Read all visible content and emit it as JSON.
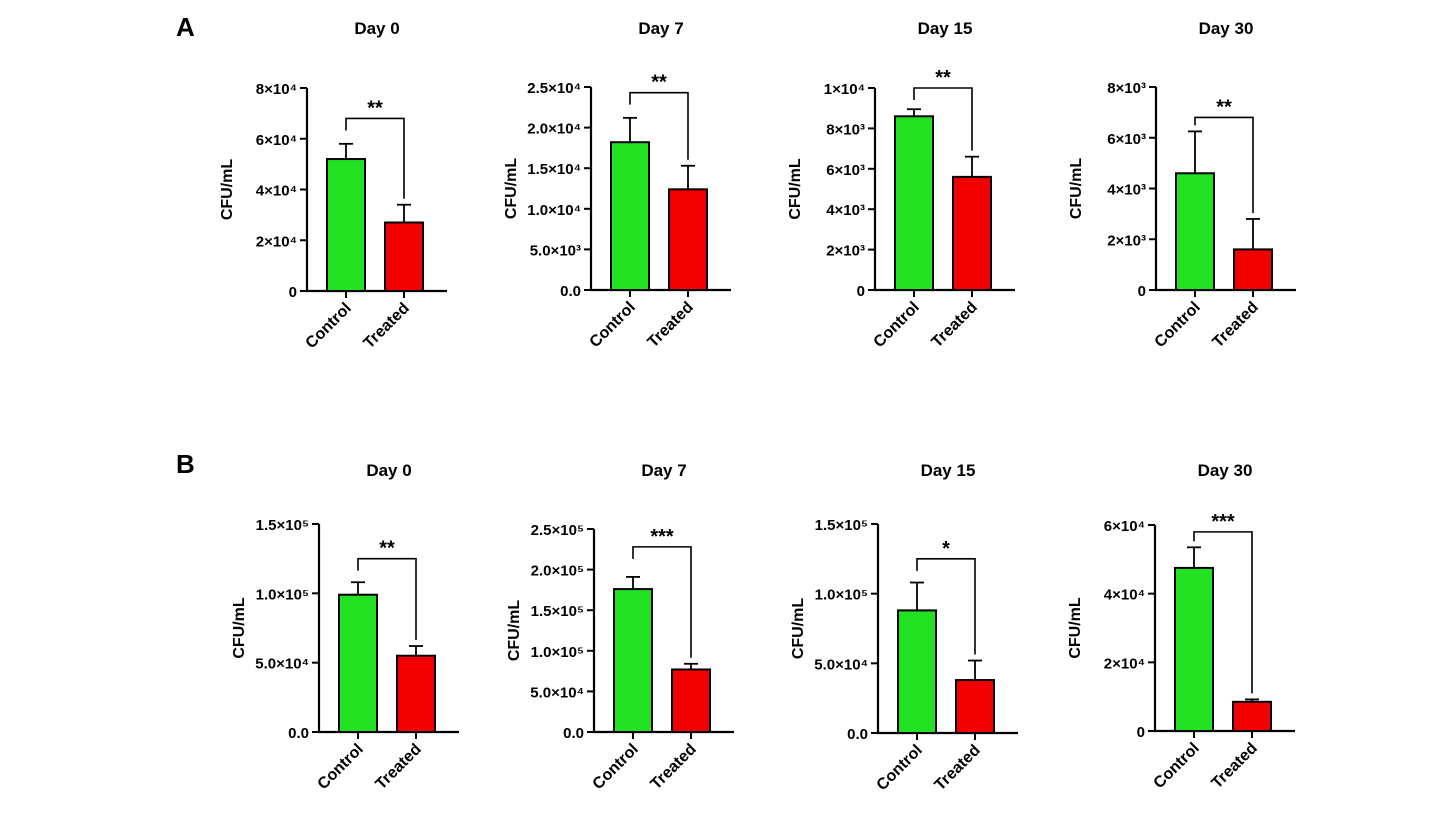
{
  "figure": {
    "panels": [
      {
        "letter": "A"
      },
      {
        "letter": "B"
      }
    ]
  },
  "colors": {
    "control": "#22e022",
    "treated": "#f20000",
    "axis": "#000000"
  },
  "chart_data": [
    {
      "type": "bar",
      "panel": "A",
      "title": "Day 0",
      "categories": [
        "Control",
        "Treated"
      ],
      "ylabel": "CFU/mL",
      "ylim": [
        0,
        80000
      ],
      "ticks": [
        {
          "v": 0,
          "label": "0"
        },
        {
          "v": 20000,
          "label": "2×10⁴"
        },
        {
          "v": 40000,
          "label": "4×10⁴"
        },
        {
          "v": 60000,
          "label": "6×10⁴"
        },
        {
          "v": 80000,
          "label": "8×10⁴"
        }
      ],
      "values": [
        52000,
        27000
      ],
      "errors": [
        6000,
        7000
      ],
      "significance": {
        "label": "**",
        "level": 68000
      }
    },
    {
      "type": "bar",
      "panel": "A",
      "title": "Day 7",
      "categories": [
        "Control",
        "Treated"
      ],
      "ylabel": "CFU/mL",
      "ylim": [
        0,
        25000
      ],
      "ticks": [
        {
          "v": 0,
          "label": "0.0"
        },
        {
          "v": 5000,
          "label": "5.0×10³"
        },
        {
          "v": 10000,
          "label": "1.0×10⁴"
        },
        {
          "v": 15000,
          "label": "1.5×10⁴"
        },
        {
          "v": 20000,
          "label": "2.0×10⁴"
        },
        {
          "v": 25000,
          "label": "2.5×10⁴"
        }
      ],
      "values": [
        18200,
        12400
      ],
      "errors": [
        3000,
        2900
      ],
      "significance": {
        "label": "**",
        "level": 24300
      }
    },
    {
      "type": "bar",
      "panel": "A",
      "title": "Day 15",
      "categories": [
        "Control",
        "Treated"
      ],
      "ylabel": "CFU/mL",
      "ylim": [
        0,
        10000
      ],
      "ticks": [
        {
          "v": 0,
          "label": "0"
        },
        {
          "v": 2000,
          "label": "2×10³"
        },
        {
          "v": 4000,
          "label": "4×10³"
        },
        {
          "v": 6000,
          "label": "6×10³"
        },
        {
          "v": 8000,
          "label": "8×10³"
        },
        {
          "v": 10000,
          "label": "1×10⁴"
        }
      ],
      "values": [
        8600,
        5600
      ],
      "errors": [
        350,
        1000
      ],
      "significance": {
        "label": "**",
        "level": 10000
      }
    },
    {
      "type": "bar",
      "panel": "A",
      "title": "Day 30",
      "categories": [
        "Control",
        "Treated"
      ],
      "ylabel": "CFU/mL",
      "ylim": [
        0,
        8000
      ],
      "ticks": [
        {
          "v": 0,
          "label": "0"
        },
        {
          "v": 2000,
          "label": "2×10³"
        },
        {
          "v": 4000,
          "label": "4×10³"
        },
        {
          "v": 6000,
          "label": "6×10³"
        },
        {
          "v": 8000,
          "label": "8×10³"
        }
      ],
      "values": [
        4600,
        1600
      ],
      "errors": [
        1650,
        1200
      ],
      "significance": {
        "label": "**",
        "level": 6800
      }
    },
    {
      "type": "bar",
      "panel": "B",
      "title": "Day 0",
      "categories": [
        "Control",
        "Treated"
      ],
      "ylabel": "CFU/mL",
      "ylim": [
        0,
        150000
      ],
      "ticks": [
        {
          "v": 0,
          "label": "0.0"
        },
        {
          "v": 50000,
          "label": "5.0×10⁴"
        },
        {
          "v": 100000,
          "label": "1.0×10⁵"
        },
        {
          "v": 150000,
          "label": "1.5×10⁵"
        }
      ],
      "values": [
        99000,
        55000
      ],
      "errors": [
        9000,
        7000
      ],
      "significance": {
        "label": "**",
        "level": 125000
      }
    },
    {
      "type": "bar",
      "panel": "B",
      "title": "Day 7",
      "categories": [
        "Control",
        "Treated"
      ],
      "ylabel": "CFU/mL",
      "ylim": [
        0,
        250000
      ],
      "ticks": [
        {
          "v": 0,
          "label": "0.0"
        },
        {
          "v": 50000,
          "label": "5.0×10⁴"
        },
        {
          "v": 100000,
          "label": "1.0×10⁵"
        },
        {
          "v": 150000,
          "label": "1.5×10⁵"
        },
        {
          "v": 200000,
          "label": "2.0×10⁵"
        },
        {
          "v": 250000,
          "label": "2.5×10⁵"
        }
      ],
      "values": [
        176000,
        77000
      ],
      "errors": [
        15000,
        7000
      ],
      "significance": {
        "label": "***",
        "level": 228000
      }
    },
    {
      "type": "bar",
      "panel": "B",
      "title": "Day 15",
      "categories": [
        "Control",
        "Treated"
      ],
      "ylabel": "CFU/mL",
      "ylim": [
        0,
        150000
      ],
      "ticks": [
        {
          "v": 0,
          "label": "0.0"
        },
        {
          "v": 50000,
          "label": "5.0×10⁴"
        },
        {
          "v": 100000,
          "label": "1.0×10⁵"
        },
        {
          "v": 150000,
          "label": "1.5×10⁵"
        }
      ],
      "values": [
        88000,
        38000
      ],
      "errors": [
        20000,
        14000
      ],
      "significance": {
        "label": "*",
        "level": 125000
      }
    },
    {
      "type": "bar",
      "panel": "B",
      "title": "Day 30",
      "categories": [
        "Control",
        "Treated"
      ],
      "ylabel": "CFU/mL",
      "ylim": [
        0,
        60000
      ],
      "ticks": [
        {
          "v": 0,
          "label": "0"
        },
        {
          "v": 20000,
          "label": "2×10⁴"
        },
        {
          "v": 40000,
          "label": "4×10⁴"
        },
        {
          "v": 60000,
          "label": "6×10⁴"
        }
      ],
      "values": [
        47500,
        8500
      ],
      "errors": [
        6000,
        700
      ],
      "significance": {
        "label": "***",
        "level": 58000
      }
    }
  ]
}
